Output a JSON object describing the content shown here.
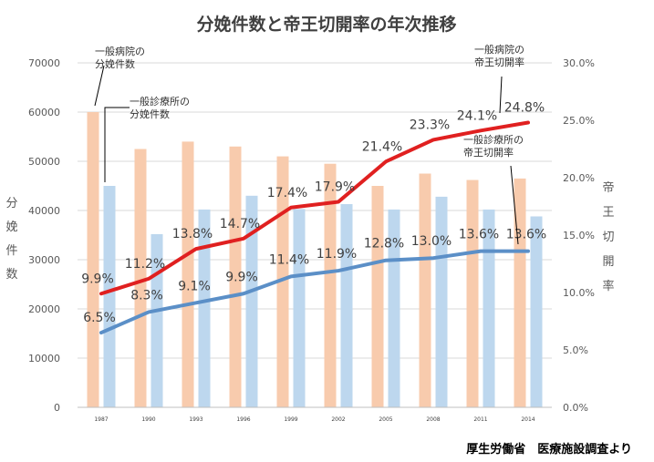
{
  "chart_data": {
    "type": "bar+line",
    "title": "分娩件数と帝王切開率の年次推移",
    "source": "厚生労働省　医療施設調査より",
    "categories": [
      "1987",
      "1990",
      "1993",
      "1996",
      "1999",
      "2002",
      "2005",
      "2008",
      "2011",
      "2014"
    ],
    "y_left": {
      "label": "分娩件数",
      "lim": [
        0,
        70000
      ],
      "ticks": [
        "0",
        "10000",
        "20000",
        "30000",
        "40000",
        "50000",
        "60000",
        "70000"
      ]
    },
    "y_right": {
      "label": "帝王切開率",
      "lim": [
        0,
        30
      ],
      "ticks": [
        "0.0%",
        "5.0%",
        "10.0%",
        "15.0%",
        "20.0%",
        "25.0%",
        "30.0%"
      ]
    },
    "bar_series": [
      {
        "name": "一般病院の分娩件数",
        "color": "#f8cbad",
        "values": [
          60000,
          52500,
          54000,
          53000,
          51000,
          49500,
          45000,
          47500,
          46200,
          46500
        ]
      },
      {
        "name": "一般診療所の分娩件数",
        "color": "#bdd7ee",
        "values": [
          45000,
          35200,
          40200,
          43000,
          40300,
          41300,
          40200,
          42800,
          40200,
          38800
        ]
      }
    ],
    "line_series": [
      {
        "name": "一般病院の帝王切開率",
        "color": "#e02020",
        "values": [
          9.9,
          11.2,
          13.8,
          14.7,
          17.4,
          17.9,
          21.4,
          23.3,
          24.1,
          24.8
        ],
        "labels": [
          "9.9%",
          "11.2%",
          "13.8%",
          "14.7%",
          "17.4%",
          "17.9%",
          "21.4%",
          "23.3%",
          "24.1%",
          "24.8%"
        ]
      },
      {
        "name": "一般診療所の帝王切開率",
        "color": "#5b8fc7",
        "values": [
          6.5,
          8.3,
          9.1,
          9.9,
          11.4,
          11.9,
          12.8,
          13.0,
          13.6,
          13.6
        ],
        "labels": [
          "6.5%",
          "8.3%",
          "9.1%",
          "9.9%",
          "11.4%",
          "11.9%",
          "12.8%",
          "13.0%",
          "13.6%",
          "13.6%"
        ]
      }
    ],
    "annotations": [
      {
        "lines": [
          "一般病院の",
          "分娩件数"
        ],
        "target": "bar",
        "series": 0,
        "index": 0
      },
      {
        "lines": [
          "一般診療所の",
          "分娩件数"
        ],
        "target": "bar",
        "series": 1,
        "index": 0
      },
      {
        "lines": [
          "一般病院の",
          "帝王切開率"
        ],
        "target": "line",
        "series": 0,
        "index": 9
      },
      {
        "lines": [
          "一般診療所の",
          "帝王切開率"
        ],
        "target": "line",
        "series": 1,
        "index": 9
      }
    ]
  }
}
